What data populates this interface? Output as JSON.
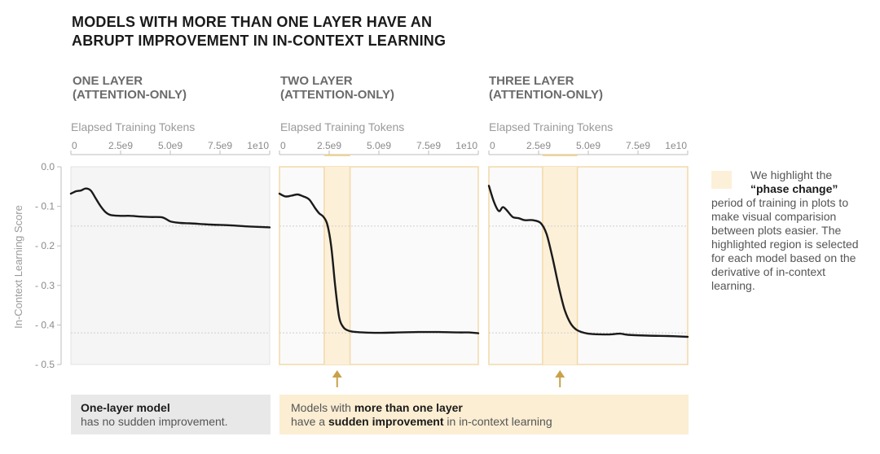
{
  "header": {
    "title_line1": "MODELS WITH MORE THAN ONE LAYER HAVE AN",
    "title_line2": "ABRUPT IMPROVEMENT IN IN-CONTEXT LEARNING"
  },
  "panels": [
    {
      "title_line1": "ONE LAYER",
      "title_line2": "(ATTENTION-ONLY)",
      "x_title": "Elapsed Training Tokens"
    },
    {
      "title_line1": "TWO LAYER",
      "title_line2": "(ATTENTION-ONLY)",
      "x_title": "Elapsed Training Tokens"
    },
    {
      "title_line1": "THREE LAYER",
      "title_line2": "(ATTENTION-ONLY)",
      "x_title": "Elapsed Training Tokens"
    }
  ],
  "y_axis_title": "In-Context Learning Score",
  "legend": {
    "line1": "We highlight the",
    "line2": "“phase change”",
    "rest": "period of training in plots to make visual comparision between plots easier. The highlighted region is selected for each model based on the derivative of in-context learning."
  },
  "notes": {
    "gray_bold": "One-layer model",
    "gray_rest": "has no sudden improvement.",
    "gold_pre": "Models with ",
    "gold_bold1": "more than one layer",
    "gold_mid": "have a ",
    "gold_bold2": "sudden improvement",
    "gold_post": " in in-context learning"
  },
  "colors": {
    "line": "#1a1a1a",
    "highlight_fill": "#fdf0d9",
    "highlight_stroke": "#f2d9a8",
    "arrow": "#c9a14a",
    "plot_bg": "#f5f5f5",
    "grid": "#e8e8e8",
    "ref_line": "#cfcfcf",
    "axis_text": "#8a8a8a"
  },
  "chart_data": [
    {
      "type": "line",
      "title": "ONE LAYER (ATTENTION-ONLY)",
      "xlabel": "Elapsed Training Tokens",
      "ylabel": "In-Context Learning Score",
      "xlim": [
        0,
        10000000000
      ],
      "ylim": [
        -0.5,
        0
      ],
      "x_ticks": [
        0,
        2500000000,
        5000000000,
        7500000000,
        10000000000
      ],
      "x_tick_labels": [
        "0",
        "2.5e9",
        "5.0e9",
        "7.5e9",
        "1e10"
      ],
      "y_ticks": [
        0,
        -0.1,
        -0.2,
        -0.3,
        -0.4,
        -0.5
      ],
      "y_tick_labels": [
        "0.0",
        "- 0.1",
        "- 0.2",
        "- 0.3",
        "- 0.4",
        "- 0.5"
      ],
      "reference_lines": [
        -0.15,
        -0.42
      ],
      "phase_change": null,
      "series": [
        {
          "values": [
            [
              0,
              -0.068
            ],
            [
              250000000,
              -0.062
            ],
            [
              500000000,
              -0.06
            ],
            [
              750000000,
              -0.055
            ],
            [
              1000000000,
              -0.06
            ],
            [
              1250000000,
              -0.08
            ],
            [
              1500000000,
              -0.1
            ],
            [
              1750000000,
              -0.115
            ],
            [
              2000000000,
              -0.122
            ],
            [
              2500000000,
              -0.124
            ],
            [
              3000000000,
              -0.124
            ],
            [
              3500000000,
              -0.126
            ],
            [
              4000000000,
              -0.127
            ],
            [
              4600000000,
              -0.128
            ],
            [
              5000000000,
              -0.138
            ],
            [
              5500000000,
              -0.142
            ],
            [
              6000000000,
              -0.143
            ],
            [
              7000000000,
              -0.146
            ],
            [
              8000000000,
              -0.148
            ],
            [
              9000000000,
              -0.151
            ],
            [
              10000000000,
              -0.153
            ]
          ]
        }
      ]
    },
    {
      "type": "line",
      "title": "TWO LAYER (ATTENTION-ONLY)",
      "xlabel": "Elapsed Training Tokens",
      "ylabel": "In-Context Learning Score",
      "xlim": [
        0,
        10000000000
      ],
      "ylim": [
        -0.5,
        0
      ],
      "x_ticks": [
        0,
        2500000000,
        5000000000,
        7500000000,
        10000000000
      ],
      "x_tick_labels": [
        "0",
        "2.5e9",
        "5.0e9",
        "7.5e9",
        "1e10"
      ],
      "reference_lines": [
        -0.15,
        -0.42
      ],
      "phase_change": [
        2250000000,
        3550000000
      ],
      "series": [
        {
          "values": [
            [
              0,
              -0.068
            ],
            [
              300000000,
              -0.075
            ],
            [
              600000000,
              -0.073
            ],
            [
              900000000,
              -0.07
            ],
            [
              1200000000,
              -0.075
            ],
            [
              1500000000,
              -0.083
            ],
            [
              1800000000,
              -0.105
            ],
            [
              2000000000,
              -0.118
            ],
            [
              2200000000,
              -0.126
            ],
            [
              2400000000,
              -0.145
            ],
            [
              2600000000,
              -0.2
            ],
            [
              2800000000,
              -0.3
            ],
            [
              3000000000,
              -0.38
            ],
            [
              3200000000,
              -0.405
            ],
            [
              3400000000,
              -0.413
            ],
            [
              3700000000,
              -0.417
            ],
            [
              4200000000,
              -0.419
            ],
            [
              5000000000,
              -0.42
            ],
            [
              6000000000,
              -0.419
            ],
            [
              7000000000,
              -0.418
            ],
            [
              8000000000,
              -0.418
            ],
            [
              9000000000,
              -0.419
            ],
            [
              9500000000,
              -0.419
            ],
            [
              10000000000,
              -0.421
            ]
          ]
        }
      ]
    },
    {
      "type": "line",
      "title": "THREE LAYER (ATTENTION-ONLY)",
      "xlabel": "Elapsed Training Tokens",
      "ylabel": "In-Context Learning Score",
      "xlim": [
        0,
        10000000000
      ],
      "ylim": [
        -0.5,
        0
      ],
      "x_ticks": [
        0,
        2500000000,
        5000000000,
        7500000000,
        10000000000
      ],
      "x_tick_labels": [
        "0",
        "2.5e9",
        "5.0e9",
        "7.5e9",
        "1e10"
      ],
      "reference_lines": [
        -0.15,
        -0.42
      ],
      "phase_change": [
        2700000000,
        4450000000
      ],
      "series": [
        {
          "values": [
            [
              0,
              -0.048
            ],
            [
              250000000,
              -0.088
            ],
            [
              500000000,
              -0.112
            ],
            [
              700000000,
              -0.102
            ],
            [
              900000000,
              -0.11
            ],
            [
              1200000000,
              -0.127
            ],
            [
              1500000000,
              -0.13
            ],
            [
              1800000000,
              -0.135
            ],
            [
              2200000000,
              -0.135
            ],
            [
              2600000000,
              -0.142
            ],
            [
              2900000000,
              -0.17
            ],
            [
              3200000000,
              -0.23
            ],
            [
              3500000000,
              -0.3
            ],
            [
              3800000000,
              -0.36
            ],
            [
              4100000000,
              -0.395
            ],
            [
              4400000000,
              -0.412
            ],
            [
              4800000000,
              -0.42
            ],
            [
              5200000000,
              -0.423
            ],
            [
              6000000000,
              -0.424
            ],
            [
              6600000000,
              -0.422
            ],
            [
              7000000000,
              -0.425
            ],
            [
              8000000000,
              -0.427
            ],
            [
              9000000000,
              -0.428
            ],
            [
              10000000000,
              -0.43
            ]
          ]
        }
      ]
    }
  ]
}
